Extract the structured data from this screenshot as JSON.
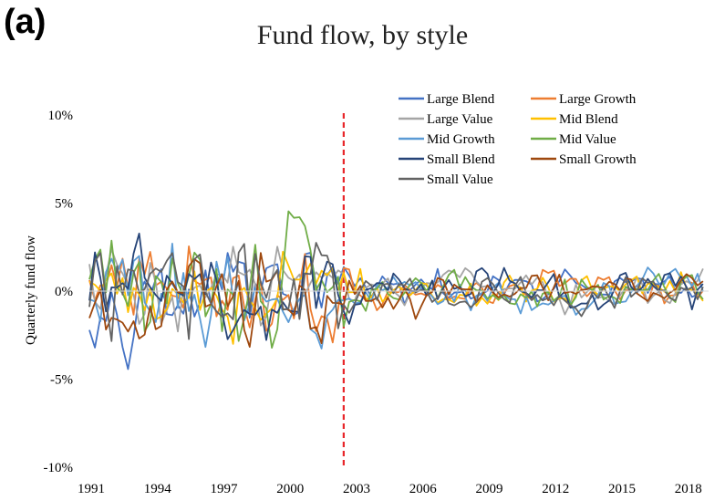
{
  "panel_label": "(a)",
  "chart_data": {
    "type": "line",
    "title": "Fund flow, by style",
    "xlabel": "",
    "ylabel": "Quarterly fund flow",
    "xlim": [
      1991,
      2019
    ],
    "ylim": [
      -0.1,
      0.1
    ],
    "x_ticks": [
      "1991",
      "1994",
      "1997",
      "2000",
      "2003",
      "2006",
      "2009",
      "2012",
      "2015",
      "2018"
    ],
    "y_ticks": [
      "10%",
      "5%",
      "0%",
      "-5%",
      "-10%"
    ],
    "grid": false,
    "legend_position": "top-right",
    "vertical_reference_line": {
      "x": 2002.5,
      "style": "dashed",
      "color": "#e8262a"
    },
    "series": [
      {
        "name": "Large Blend",
        "color": "#4472c4"
      },
      {
        "name": "Large Growth",
        "color": "#ed7d31"
      },
      {
        "name": "Large Value",
        "color": "#a5a5a5"
      },
      {
        "name": "Mid Blend",
        "color": "#ffc000"
      },
      {
        "name": "Mid Growth",
        "color": "#5b9bd5"
      },
      {
        "name": "Mid Value",
        "color": "#70ad47"
      },
      {
        "name": "Small Blend",
        "color": "#264478"
      },
      {
        "name": "Small Growth",
        "color": "#9e480e"
      },
      {
        "name": "Small Value",
        "color": "#636363"
      }
    ]
  }
}
